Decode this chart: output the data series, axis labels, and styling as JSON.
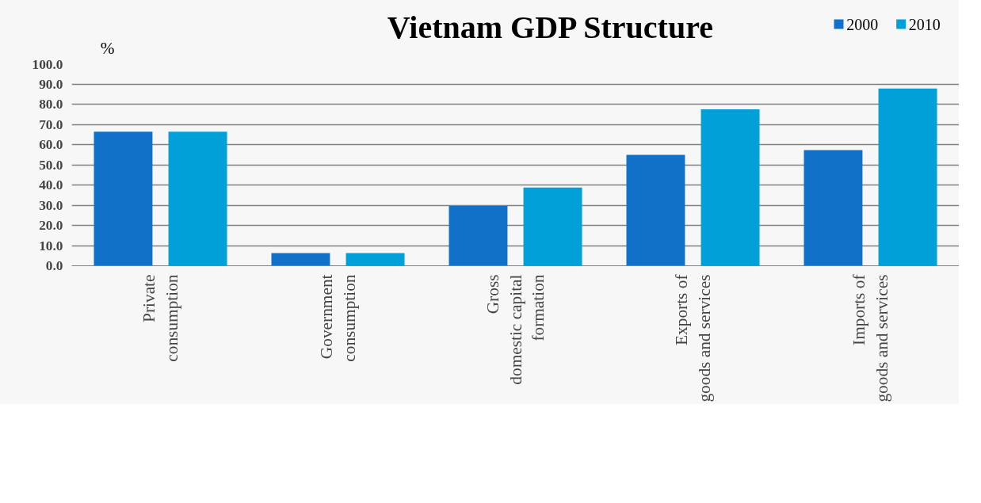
{
  "chart_data": {
    "type": "bar",
    "title": "Vietnam GDP Structure",
    "ylabel": "%",
    "categories": [
      "Private\nconsumption",
      "Government\nconsumption",
      "Gross\ndomestic capital\nformation",
      "Exports of\ngoods and services",
      "Imports of\ngoods and services"
    ],
    "series": [
      {
        "name": "2000",
        "color": "#1170c8",
        "values": [
          66.4,
          6.3,
          29.6,
          54.9,
          57.3
        ]
      },
      {
        "name": "2010",
        "color": "#01a0d8",
        "values": [
          66.4,
          6.3,
          38.7,
          77.5,
          87.7
        ]
      }
    ],
    "ylim": [
      0,
      100
    ],
    "yticks": [
      {
        "value": 0,
        "label": "0.0"
      },
      {
        "value": 10,
        "label": "10.0"
      },
      {
        "value": 20,
        "label": "20.0"
      },
      {
        "value": 30,
        "label": "30.0"
      },
      {
        "value": 40,
        "label": "40.0"
      },
      {
        "value": 50,
        "label": "50.0"
      },
      {
        "value": 60,
        "label": "60.0"
      },
      {
        "value": 70,
        "label": "70.0"
      },
      {
        "value": 80,
        "label": "80.0"
      },
      {
        "value": 90,
        "label": "90.0"
      },
      {
        "value": 100,
        "label": "100.0"
      }
    ],
    "grid": "y",
    "legend": "top right"
  }
}
